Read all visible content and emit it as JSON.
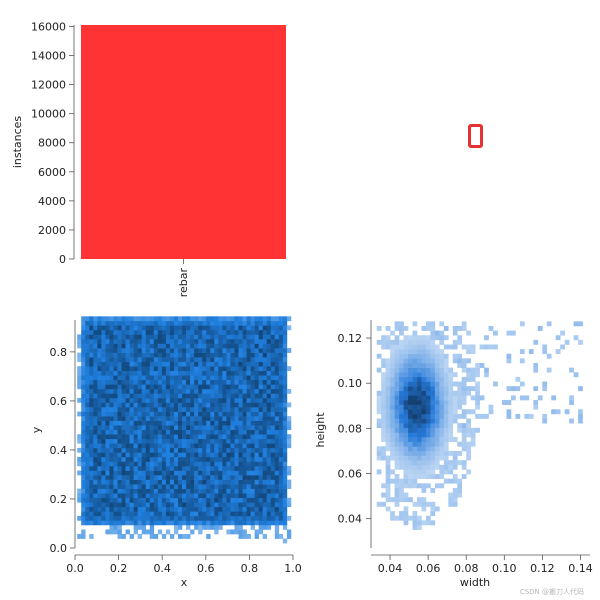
{
  "chart_data": [
    {
      "type": "bar",
      "categories": [
        "rebar"
      ],
      "values": [
        16100
      ],
      "ylabel": "instances",
      "ylim": [
        0,
        16100
      ],
      "yticks": [
        0,
        2000,
        4000,
        6000,
        8000,
        10000,
        12000,
        14000,
        16000
      ],
      "color": "#ff3333"
    },
    {
      "type": "scatter",
      "description_role": "box outline preview",
      "color": "#e63232"
    },
    {
      "type": "heatmap",
      "xlabel": "x",
      "ylabel": "y",
      "xlim": [
        0.0,
        1.0
      ],
      "ylim": [
        0.0,
        0.93
      ],
      "xticks": [
        0.0,
        0.2,
        0.4,
        0.6,
        0.8,
        1.0
      ],
      "yticks": [
        0.0,
        0.2,
        0.4,
        0.6,
        0.8
      ],
      "density_region": {
        "x": [
          0.02,
          0.97
        ],
        "y": [
          0.08,
          0.93
        ]
      },
      "color": "#1f77d4"
    },
    {
      "type": "heatmap",
      "xlabel": "width",
      "ylabel": "height",
      "xlim": [
        0.03,
        0.145
      ],
      "ylim": [
        0.027,
        0.128
      ],
      "xticks": [
        0.04,
        0.06,
        0.08,
        0.1,
        0.12,
        0.14
      ],
      "yticks": [
        0.04,
        0.06,
        0.08,
        0.1,
        0.12
      ],
      "peak": {
        "x": 0.053,
        "y": 0.089
      },
      "color": "#1f77d4"
    }
  ],
  "watermark": "CSDN @搬刀人代码"
}
